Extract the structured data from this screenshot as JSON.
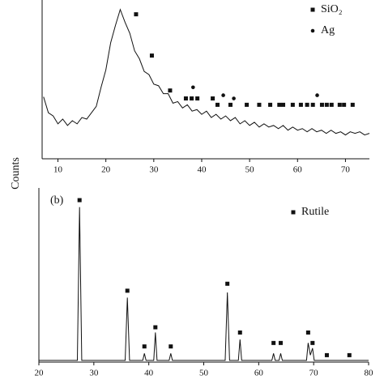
{
  "chart_data": [
    {
      "type": "line",
      "ylabel": "Counts",
      "legend": "upper right",
      "xlim": [
        6.7,
        75
      ],
      "ylim": [
        0,
        100
      ],
      "xticks": [
        10,
        20,
        30,
        40,
        50,
        60,
        70
      ],
      "series": [
        {
          "color": "#111111",
          "x": [
            7,
            8,
            9,
            10,
            11,
            12,
            13,
            14,
            15,
            16,
            17,
            18,
            19,
            20,
            21,
            22,
            23,
            24,
            25,
            26,
            27,
            28,
            29,
            30,
            31,
            32,
            33,
            34,
            35,
            36,
            37,
            38,
            39,
            40,
            41,
            42,
            43,
            44,
            45,
            46,
            47,
            48,
            49,
            50,
            51,
            52,
            53,
            54,
            55,
            56,
            57,
            58,
            59,
            60,
            61,
            62,
            63,
            64,
            65,
            66,
            67,
            68,
            69,
            70,
            71,
            72,
            73,
            74,
            75
          ],
          "values": [
            39,
            29,
            27,
            22,
            25,
            21,
            24,
            22,
            26,
            25,
            29,
            33,
            45,
            56,
            73,
            84,
            94,
            86,
            79,
            68,
            63,
            55,
            53,
            47,
            46,
            41,
            41,
            35,
            36,
            32,
            34,
            30,
            31,
            28,
            30,
            26,
            28,
            25,
            27,
            24,
            26,
            22,
            24,
            21,
            23,
            20,
            22,
            20,
            21,
            19,
            21,
            18,
            20,
            18,
            19,
            17,
            19,
            17,
            18,
            16,
            18,
            16,
            17,
            15,
            17,
            16,
            17,
            15,
            16
          ]
        },
        {
          "name": "SiO₂",
          "marker": "square",
          "color": "#111111",
          "x": [
            26.3,
            29.6,
            33.4,
            36.7,
            37.9,
            39.1,
            42.3,
            43.3,
            46,
            49.4,
            52,
            54.3,
            56.2,
            57,
            59,
            60.7,
            62,
            63.2,
            65.1,
            66.1,
            67.1,
            68.8,
            69.7,
            71.5
          ],
          "values": [
            91,
            65,
            43,
            38,
            38,
            38,
            38,
            34,
            34,
            34,
            34,
            34,
            34,
            34,
            34,
            34,
            34,
            34,
            34,
            34,
            34,
            34,
            34,
            34
          ]
        },
        {
          "name": "Ag",
          "marker": "circle",
          "color": "#111111",
          "x": [
            38.2,
            44.5,
            46.7,
            64.1
          ],
          "values": [
            45,
            40,
            38,
            40
          ]
        }
      ]
    },
    {
      "type": "line",
      "label": "(b)",
      "legend": "upper right",
      "xlim": [
        20,
        80
      ],
      "ylim": [
        0,
        100
      ],
      "xticks": [
        20,
        30,
        40,
        50,
        60,
        70,
        80
      ],
      "series": [
        {
          "color": "#111111",
          "x": [
            20,
            27.0,
            27.4,
            27.8,
            35.7,
            36.1,
            36.5,
            38.9,
            39.2,
            39.5,
            40.9,
            41.2,
            41.5,
            43.7,
            44.0,
            44.3,
            53.9,
            54.3,
            54.7,
            56.3,
            56.6,
            56.9,
            62.4,
            62.7,
            63.0,
            63.7,
            64.0,
            64.3,
            68.7,
            69.0,
            69.4,
            69.8,
            70.1,
            80
          ],
          "values": [
            1,
            1,
            89,
            1,
            1,
            37,
            1,
            1,
            5,
            1,
            1,
            17,
            1,
            1,
            5,
            1,
            1,
            40,
            1,
            1,
            13,
            1,
            1,
            5,
            1,
            1,
            5,
            1,
            1,
            11,
            4,
            8,
            1,
            1
          ]
        },
        {
          "name": "Rutile",
          "marker": "square",
          "color": "#111111",
          "x": [
            27.4,
            36.1,
            39.2,
            41.2,
            44.0,
            54.3,
            56.6,
            62.7,
            64.0,
            69.0,
            69.8,
            72.4,
            76.5
          ],
          "values": [
            93,
            41,
            9,
            20,
            9,
            45,
            17,
            11,
            11,
            17,
            11,
            4,
            4
          ]
        }
      ]
    }
  ]
}
